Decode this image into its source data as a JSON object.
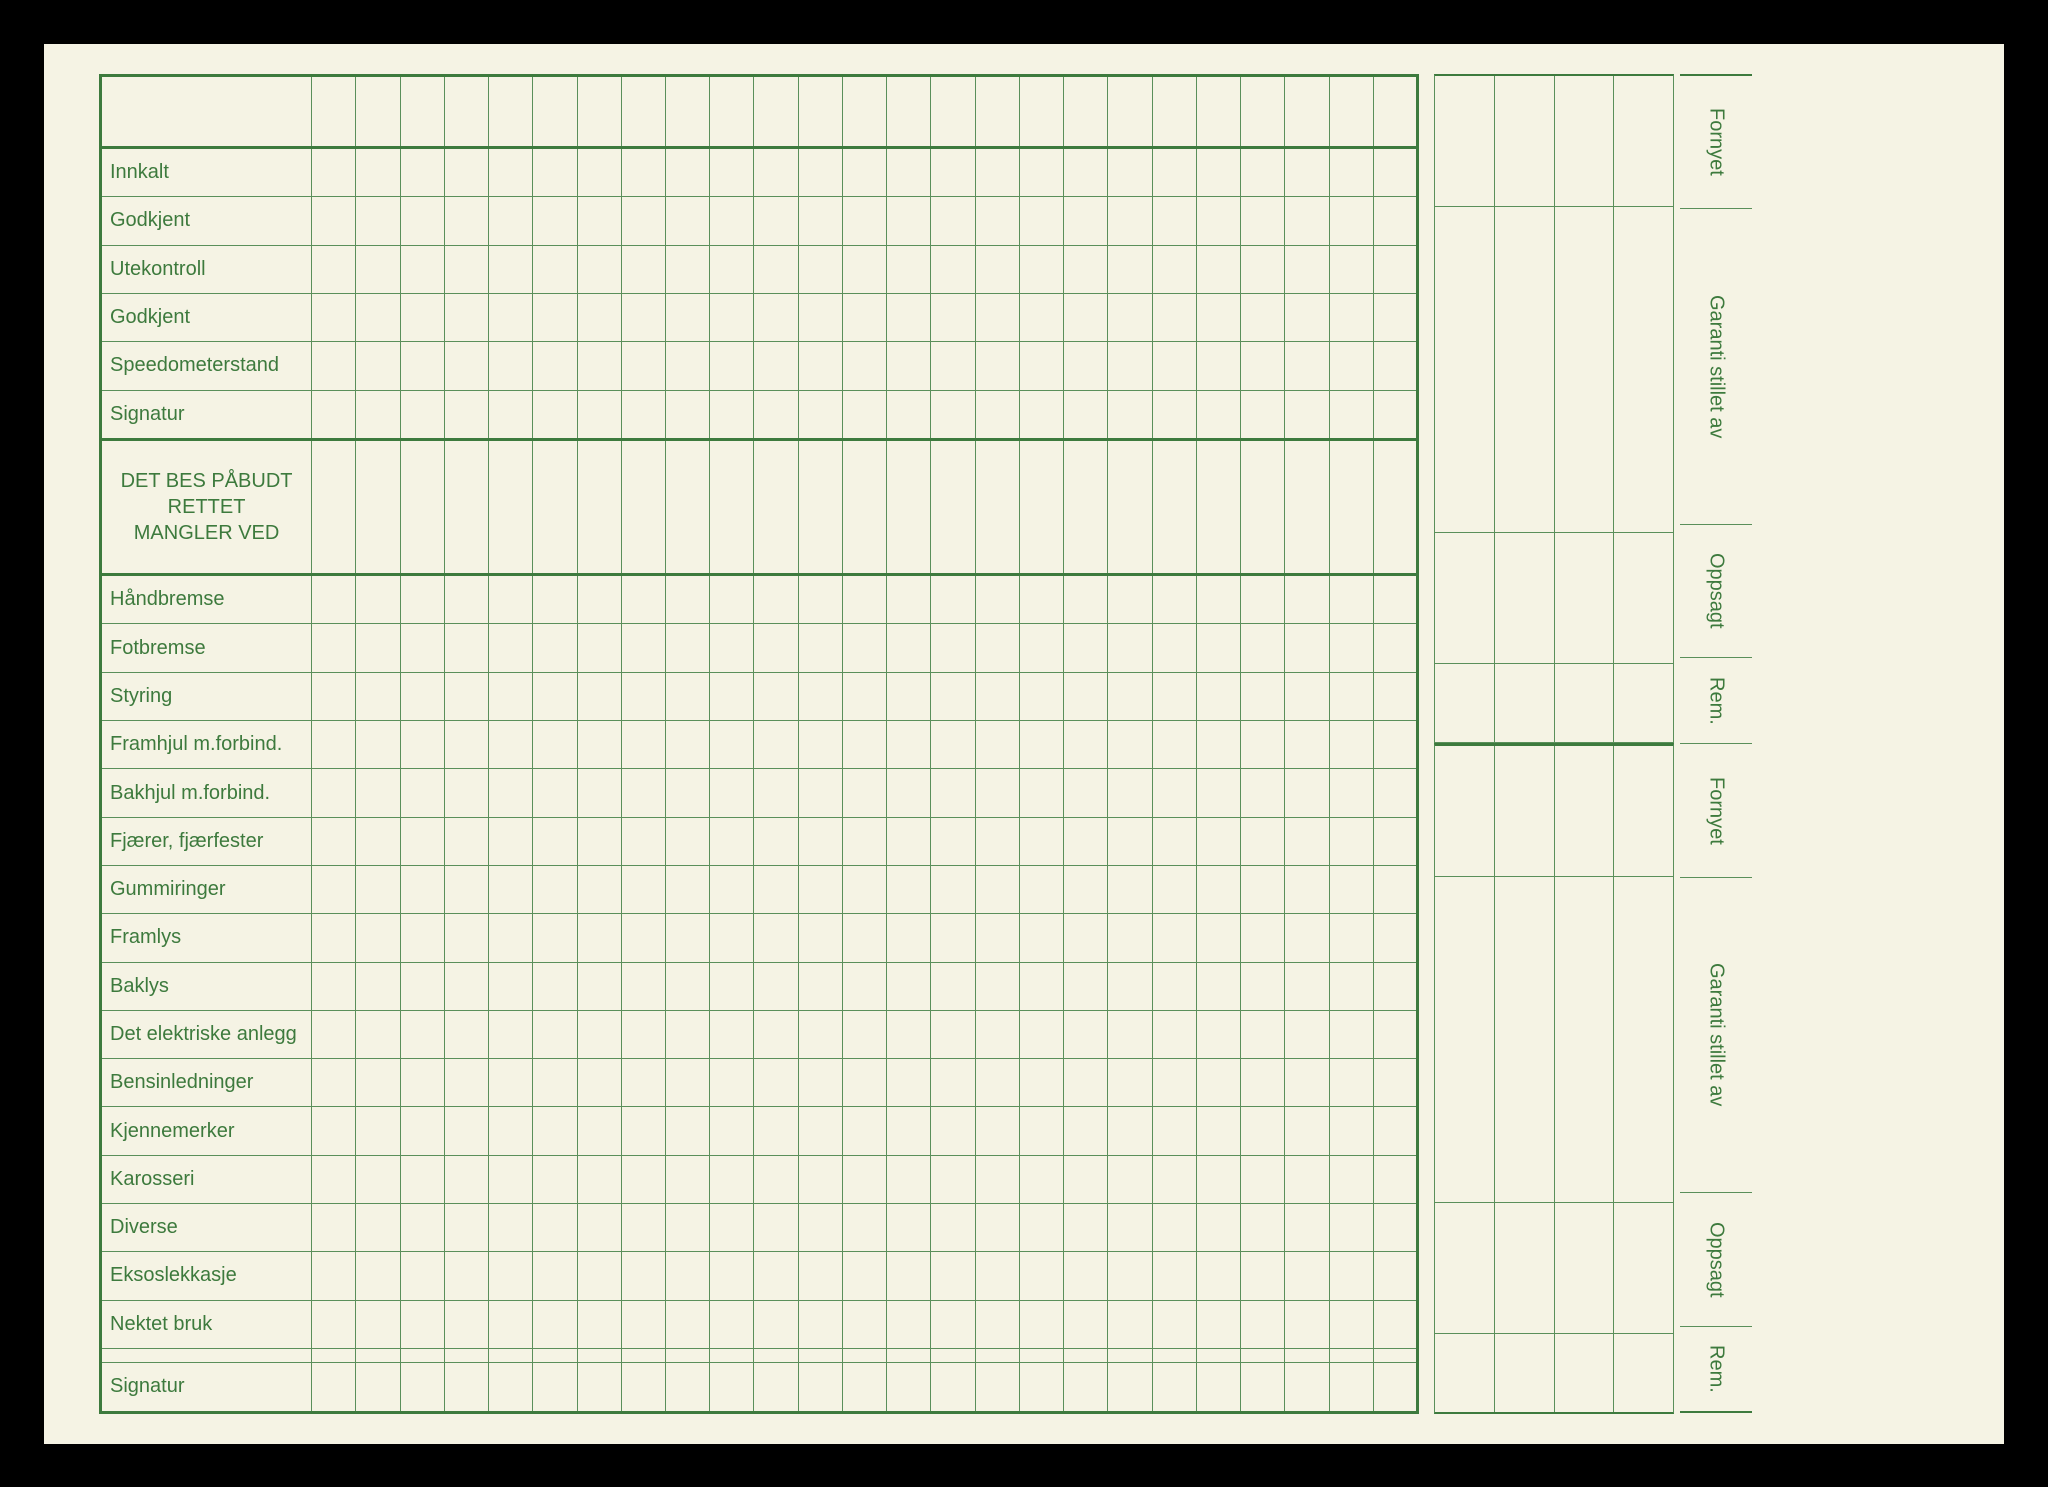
{
  "colors": {
    "paper": "#f5f3e4",
    "ink": "#3d7a3d",
    "line": "#5a8f5a",
    "heavy_line": "#3d7a3d",
    "frame": "#000000"
  },
  "typography": {
    "label_fontsize": 20,
    "font_family": "Arial"
  },
  "main": {
    "data_columns": 25,
    "rows": [
      {
        "label": "",
        "type": "header"
      },
      {
        "label": "Innkalt"
      },
      {
        "label": "Godkjent"
      },
      {
        "label": "Utekontroll"
      },
      {
        "label": "Godkjent"
      },
      {
        "label": "Speedometerstand"
      },
      {
        "label": "Signatur",
        "section_end": true
      },
      {
        "label": "DET BES PÅBUDT RETTET\nMANGLER VED",
        "type": "section-title",
        "center": true
      },
      {
        "label": "Håndbremse"
      },
      {
        "label": "Fotbremse"
      },
      {
        "label": "Styring"
      },
      {
        "label": "Framhjul m.forbind."
      },
      {
        "label": "Bakhjul m.forbind."
      },
      {
        "label": "Fjærer, fjærfester"
      },
      {
        "label": "Gummiringer"
      },
      {
        "label": "Framlys"
      },
      {
        "label": "Baklys"
      },
      {
        "label": "Det elektriske anlegg"
      },
      {
        "label": "Bensinledninger"
      },
      {
        "label": "Kjennemerker"
      },
      {
        "label": "Karosseri"
      },
      {
        "label": "Diverse"
      },
      {
        "label": "Eksoslekkasje"
      },
      {
        "label": "Nektet bruk"
      },
      {
        "label": ""
      },
      {
        "label": "Signatur"
      }
    ]
  },
  "side": {
    "columns_per_block": 4,
    "blocks": [
      {
        "height_units": 2
      },
      {
        "height_units": 5
      },
      {
        "height_units": 2
      },
      {
        "height_units": 1.2
      },
      {
        "height_units": 2,
        "separator": true
      },
      {
        "height_units": 5
      },
      {
        "height_units": 2
      },
      {
        "height_units": 1.2
      }
    ]
  },
  "right_labels": [
    {
      "text": "Fornyet",
      "height_units": 2
    },
    {
      "text": "Garanti stillet av",
      "height_units": 5
    },
    {
      "text": "Oppsagt",
      "height_units": 2
    },
    {
      "text": "Rem.",
      "height_units": 1.2
    },
    {
      "text": "Fornyet",
      "height_units": 2
    },
    {
      "text": "Garanti stillet av",
      "height_units": 5
    },
    {
      "text": "Oppsagt",
      "height_units": 2
    },
    {
      "text": "Rem.",
      "height_units": 1.2
    }
  ]
}
